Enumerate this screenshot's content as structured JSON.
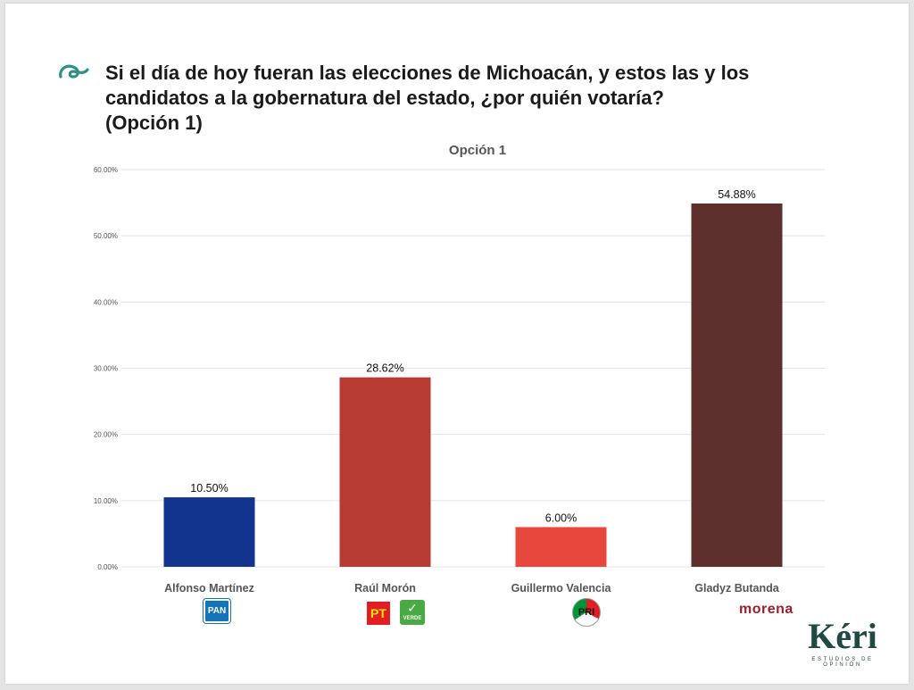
{
  "headline": {
    "lines": [
      "Si el día de hoy fueran las elecciones de Michoacán, y estos las y los",
      "candidatos a la gobernatura del estado, ¿por quién votaría?",
      "(Opción 1)"
    ]
  },
  "chart_data": {
    "type": "bar",
    "title": "Opción 1",
    "categories": [
      "Alfonso Martínez",
      "Raúl Morón",
      "Guillermo Valencia",
      "Gladyz Butanda"
    ],
    "values": [
      10.5,
      28.62,
      6.0,
      54.88
    ],
    "data_labels": [
      "10.50%",
      "28.62%",
      "6.00%",
      "54.88%"
    ],
    "bar_colors": [
      "#12338e",
      "#b73b32",
      "#e8473e",
      "#5e302d"
    ],
    "ylim": [
      0,
      60
    ],
    "yticks": [
      0,
      10,
      20,
      30,
      40,
      50,
      60
    ],
    "ytick_labels": [
      "0.00%",
      "10.00%",
      "20.00%",
      "30.00%",
      "40.00%",
      "50.00%",
      "60.00%"
    ],
    "grid": true,
    "xlabel": "",
    "ylabel": ""
  },
  "party_logos": {
    "pan": "PAN",
    "pt": "PT",
    "verde": "VERDE",
    "pri": "PRI",
    "morena": "morena"
  },
  "brand": {
    "name": "Kéri",
    "tagline": "ESTUDIOS DE OPINIÓN"
  },
  "colors": {
    "accent": "#1f4a44",
    "gridline": "#e3e3e3"
  },
  "icons": {
    "bullet": "swirl-icon"
  }
}
